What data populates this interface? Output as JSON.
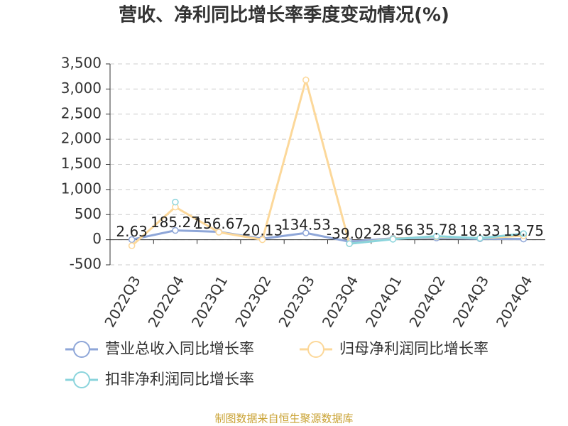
{
  "chart_data": {
    "type": "line",
    "title": "营收、净利同比增长率季度变动情况(%)",
    "categories": [
      "2022Q3",
      "2022Q4",
      "2023Q1",
      "2023Q2",
      "2023Q3",
      "2023Q4",
      "2024Q1",
      "2024Q2",
      "2024Q3",
      "2024Q4"
    ],
    "series": [
      {
        "name": "营业总收入同比增长率",
        "color": "#8ea6d8",
        "values": [
          2.63,
          185.27,
          156.67,
          20.13,
          134.53,
          -39.02,
          28.56,
          35.78,
          18.33,
          13.75
        ]
      },
      {
        "name": "归母净利润同比增长率",
        "color": "#fcd89a",
        "values": [
          -120,
          650,
          150,
          0,
          3180,
          -80,
          20,
          60,
          30,
          80
        ]
      },
      {
        "name": "扣非净利润同比增长率",
        "color": "#8ad4dc",
        "values": [
          null,
          750,
          null,
          null,
          null,
          -80,
          10,
          70,
          30,
          120
        ]
      }
    ],
    "ylim": [
      -500,
      3500
    ],
    "yticks": [
      -500,
      0,
      500,
      {
        "value": 1000,
        "label": "1,000"
      },
      {
        "value": 1500,
        "label": "1,500"
      },
      {
        "value": 2000,
        "label": "2,000"
      },
      {
        "value": 2500,
        "label": "2,500"
      },
      {
        "value": 3000,
        "label": "3,000"
      },
      {
        "value": 3500,
        "label": "3,500"
      }
    ],
    "grid": true,
    "source": "制图数据来自恒生聚源数据库"
  }
}
